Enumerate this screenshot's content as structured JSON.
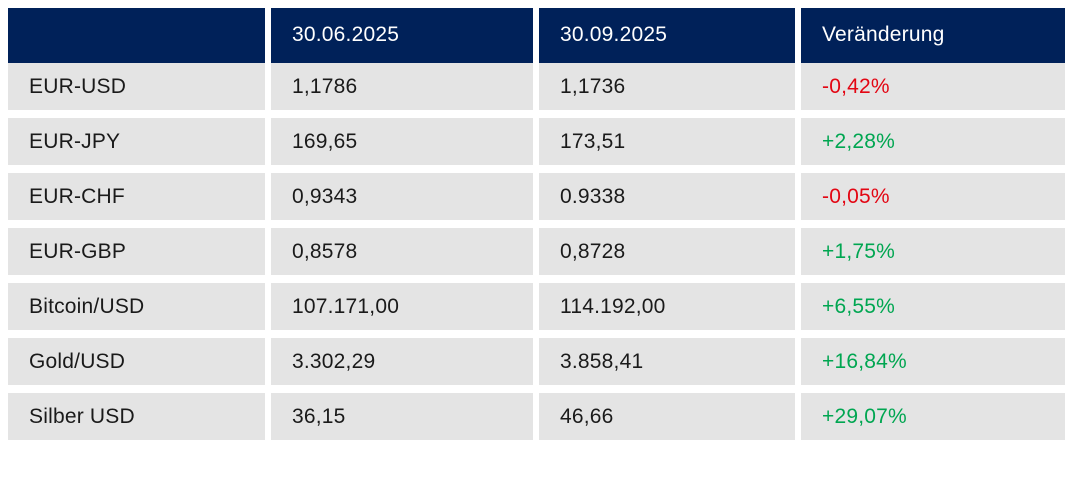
{
  "table": {
    "headers": [
      "",
      "30.06.2025",
      "30.09.2025",
      "Veränderung"
    ],
    "rows": [
      {
        "label": "EUR-USD",
        "value_1": "1,1786",
        "value_2": "1,1736",
        "change": "-0,42%"
      },
      {
        "label": "EUR-JPY",
        "value_1": "169,65",
        "value_2": "173,51",
        "change": "+2,28%"
      },
      {
        "label": "EUR-CHF",
        "value_1": "0,9343",
        "value_2": "0.9338",
        "change": "-0,05%"
      },
      {
        "label": "EUR-GBP",
        "value_1": "0,8578",
        "value_2": "0,8728",
        "change": "+1,75%"
      },
      {
        "label": "Bitcoin/USD",
        "value_1": "107.171,00",
        "value_2": "114.192,00",
        "change": "+6,55%"
      },
      {
        "label": "Gold/USD",
        "value_1": "3.302,29",
        "value_2": "3.858,41",
        "change": "+16,84%"
      },
      {
        "label": "Silber USD",
        "value_1": "36,15",
        "value_2": "46,66",
        "change": "+29,07%"
      }
    ]
  },
  "colors": {
    "header_bg": "#002159",
    "row_bg": "#e4e4e4",
    "positive": "#00a651",
    "negative": "#e30613"
  }
}
